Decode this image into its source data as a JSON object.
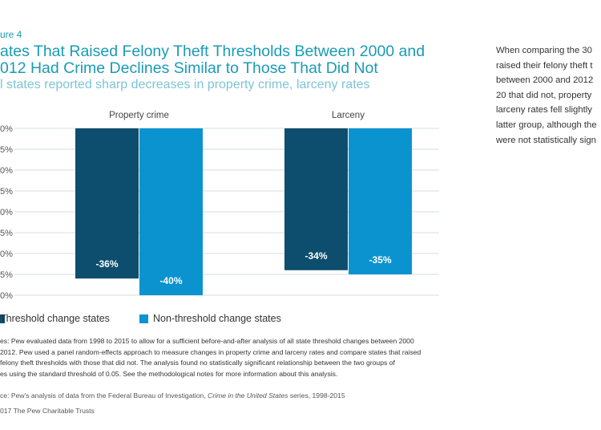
{
  "figure_label": "ure 4",
  "title_lines": [
    "ates That Raised Felony Theft Thresholds Between 2000 and",
    "012 Had Crime Declines Similar to Those That Did Not"
  ],
  "subtitle": "l states reported sharp decreases in property crime, larceny rates",
  "side_text_lines": [
    "When comparing the 30",
    "raised their felony theft t",
    "between 2000 and 2012",
    "20 that did not, property",
    "larceny rates fell slightly",
    "latter group, although the",
    "were not statistically sign"
  ],
  "colors": {
    "accent": "#1a9bb5",
    "threshold": "#0d4e6e",
    "non_threshold": "#0b93cf",
    "gridline": "#d6dde2"
  },
  "chart_data": {
    "type": "bar",
    "categories": [
      "Property crime",
      "Larceny"
    ],
    "series": [
      {
        "name": "Threshold change states",
        "values": [
          -36,
          -34
        ],
        "labels": [
          "-36%",
          "-34%"
        ]
      },
      {
        "name": "Non-threshold change states",
        "values": [
          -40,
          -35
        ],
        "labels": [
          "-40%",
          "-35%"
        ]
      }
    ],
    "y_tick_labels": [
      "0%",
      "5%",
      "0%",
      "5%",
      "0%",
      "5%",
      "0%",
      "5%",
      "0%"
    ],
    "ylim": [
      -40,
      0
    ],
    "grid": true,
    "legend": "bottom"
  },
  "legend": {
    "items": [
      {
        "label": "Threshold change states"
      },
      {
        "label": "Non-threshold change states"
      }
    ]
  },
  "notes_lines": [
    "es: Pew evaluated data from 1998 to 2015 to allow for a sufficient before-and-after analysis of all state threshold changes between 2000",
    "2012. Pew used a panel random-effects approach to measure changes in property crime and larceny rates and compare states that raised",
    "felony theft thresholds with those that did not. The analysis found no statistically significant relationship between the two groups of",
    "es using the standard threshold of 0.05. See the methodological notes for more information about this analysis."
  ],
  "source": {
    "prefix": "ce: Pew's analysis of data from the Federal Bureau of Investigation, ",
    "italic": "Crime in the United States",
    "suffix": " series, 1998-2015"
  },
  "copyright": "017 The Pew Charitable Trusts"
}
